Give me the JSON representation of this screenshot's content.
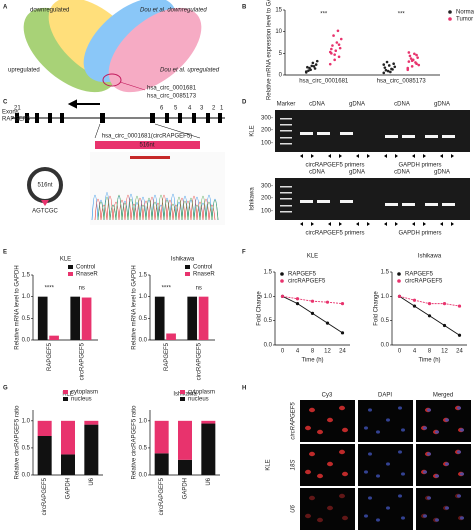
{
  "panels": {
    "letters": [
      "A",
      "B",
      "C",
      "D",
      "E",
      "F",
      "G",
      "H"
    ]
  },
  "venn": {
    "labels": [
      "downregulated",
      "Dou et al. downregulated",
      "upregulated",
      "Dou et al. upregulated"
    ],
    "highlight": [
      "hsa_circ_0001681",
      "hsa_circ_0085173"
    ]
  },
  "gene": {
    "exons": "Exons",
    "gene": "RAPGEF5",
    "exon_numbers": [
      "21",
      "6",
      "5",
      "4",
      "3",
      "2",
      "1"
    ],
    "circle": "516nt",
    "circ_label": "hsa_circ_0001681(circRAPGEF5)",
    "box": "516nt",
    "junction": "AGTCGC"
  },
  "gel": {
    "marker": "Marker",
    "lanes": [
      "cDNA",
      "gDNA",
      "cDNA",
      "gDNA"
    ],
    "cells": [
      "KLE",
      "Ishikawa"
    ],
    "sizes": [
      "300-",
      "200-",
      "100-"
    ],
    "primers": [
      "circRAPGEF5 primers",
      "GAPDH primers"
    ]
  },
  "microscopy": {
    "columns": [
      "Cy3",
      "DAPI",
      "Merged"
    ],
    "rows": [
      "circRAPGEF5",
      "18S",
      "U6"
    ],
    "cell": "KLE"
  },
  "chart_data": [
    {
      "type": "strip",
      "y_label": "Relative mRNA expression level to GAPDH",
      "categories": [
        "hsa_circ_0001681",
        "hsa_circ_0085173"
      ],
      "annotations": [
        "***",
        "***"
      ],
      "ylim": [
        0,
        15
      ],
      "yticks": [
        0,
        5,
        10,
        15
      ],
      "series": [
        {
          "name": "Normal",
          "color": "#222222",
          "values": [
            [
              0.8,
              1.2,
              1.5,
              1.8,
              2.1,
              2.4,
              1.0,
              2.8,
              3.2,
              1.6,
              2.0,
              0.6
            ],
            [
              0.5,
              0.9,
              1.3,
              1.7,
              2.2,
              2.6,
              1.1,
              0.7,
              1.9,
              3.0,
              1.4,
              2.4
            ]
          ]
        },
        {
          "name": "Tumor",
          "color": "#e8336d",
          "values": [
            [
              2.5,
              3.5,
              4.2,
              5.0,
              5.6,
              6.2,
              6.8,
              7.5,
              8.3,
              9.1,
              10.2,
              5.3,
              4.7,
              7.0,
              6.0
            ],
            [
              1.2,
              2.0,
              2.6,
              3.1,
              3.5,
              4.0,
              4.4,
              4.9,
              2.3,
              3.8,
              2.9,
              1.6,
              3.3,
              4.6,
              5.2
            ]
          ]
        }
      ]
    },
    {
      "type": "bar",
      "title": "KLE",
      "y_label": "Relative mRNA level to GAPDH",
      "categories": [
        "RAPGEF5",
        "circRAPGEF5"
      ],
      "annotations": [
        "****",
        "ns"
      ],
      "ylim": [
        0,
        1.5
      ],
      "yticks": [
        {
          "value": 0,
          "label": "0.0"
        },
        {
          "value": 0.5,
          "label": "0.5"
        },
        {
          "value": 1,
          "label": "1.0"
        },
        {
          "value": 1.5,
          "label": "1.5"
        }
      ],
      "series": [
        {
          "name": "Control",
          "color": "#111111",
          "values": [
            1.0,
            1.0
          ]
        },
        {
          "name": "RnaseR",
          "color": "#e8336d",
          "values": [
            0.1,
            0.98
          ]
        }
      ]
    },
    {
      "type": "bar",
      "title": "Ishikawa",
      "y_label": "Relative mRNA level to GAPDH",
      "categories": [
        "RAPGEF5",
        "circRAPGEF5"
      ],
      "annotations": [
        "****",
        "ns"
      ],
      "ylim": [
        0,
        1.5
      ],
      "yticks": [
        {
          "value": 0,
          "label": "0.0"
        },
        {
          "value": 0.5,
          "label": "0.5"
        },
        {
          "value": 1,
          "label": "1.0"
        },
        {
          "value": 1.5,
          "label": "1.5"
        }
      ],
      "series": [
        {
          "name": "Control",
          "color": "#111111",
          "values": [
            1.0,
            1.0
          ]
        },
        {
          "name": "RnaseR",
          "color": "#e8336d",
          "values": [
            0.15,
            1.0
          ]
        }
      ]
    },
    {
      "type": "line",
      "title": "KLE",
      "x_label": "Time (h)",
      "y_label": "Fold Change",
      "categories": [
        "0",
        "4",
        "8",
        "12",
        "24"
      ],
      "ylim": [
        0,
        1.5
      ],
      "yticks": [
        {
          "value": 0,
          "label": "0.0"
        },
        {
          "value": 0.5,
          "label": "0.5"
        },
        {
          "value": 1,
          "label": "1.0"
        },
        {
          "value": 1.5,
          "label": "1.5"
        }
      ],
      "series": [
        {
          "name": "RAPGEF5",
          "color": "#111111",
          "values": [
            1.0,
            0.85,
            0.65,
            0.45,
            0.25
          ]
        },
        {
          "name": "circRAPGEF5",
          "color": "#e8336d",
          "values": [
            1.0,
            0.95,
            0.9,
            0.88,
            0.85
          ]
        }
      ]
    },
    {
      "type": "line",
      "title": "Ishikawa",
      "x_label": "Time (h)",
      "y_label": "Fold Change",
      "categories": [
        "0",
        "4",
        "8",
        "12",
        "24"
      ],
      "ylim": [
        0,
        1.5
      ],
      "yticks": [
        {
          "value": 0,
          "label": "0.0"
        },
        {
          "value": 0.5,
          "label": "0.5"
        },
        {
          "value": 1,
          "label": "1.0"
        },
        {
          "value": 1.5,
          "label": "1.5"
        }
      ],
      "series": [
        {
          "name": "RAPGEF5",
          "color": "#111111",
          "values": [
            1.0,
            0.8,
            0.6,
            0.4,
            0.2
          ]
        },
        {
          "name": "circRAPGEF5",
          "color": "#e8336d",
          "values": [
            1.0,
            0.92,
            0.85,
            0.85,
            0.8
          ]
        }
      ]
    },
    {
      "type": "stacked_bar",
      "title": "KLE",
      "y_label": "Relative circRAPGEF5 ratio",
      "categories": [
        "circRAPGEF5",
        "GAPDH",
        "U6"
      ],
      "ylim": [
        0,
        1.2
      ],
      "yticks": [
        {
          "value": 0,
          "label": "0.0"
        },
        {
          "value": 0.5,
          "label": "0.5"
        },
        {
          "value": 1,
          "label": "1.0"
        }
      ],
      "series": [
        {
          "name": "cytoplasm",
          "color": "#e8336d",
          "values": [
            0.28,
            0.62,
            0.07
          ]
        },
        {
          "name": "nucleus",
          "color": "#111111",
          "values": [
            0.72,
            0.38,
            0.93
          ]
        }
      ]
    },
    {
      "type": "stacked_bar",
      "title": "Ishikawa",
      "y_label": "Relative circRAPGEF5 ratio",
      "categories": [
        "circRAPGEF5",
        "GAPDH",
        "U6"
      ],
      "ylim": [
        0,
        1.2
      ],
      "yticks": [
        {
          "value": 0,
          "label": "0.0"
        },
        {
          "value": 0.5,
          "label": "0.5"
        },
        {
          "value": 1,
          "label": "1.0"
        }
      ],
      "series": [
        {
          "name": "cytoplasm",
          "color": "#e8336d",
          "values": [
            0.6,
            0.72,
            0.05
          ]
        },
        {
          "name": "nucleus",
          "color": "#111111",
          "values": [
            0.4,
            0.28,
            0.95
          ]
        }
      ]
    }
  ]
}
